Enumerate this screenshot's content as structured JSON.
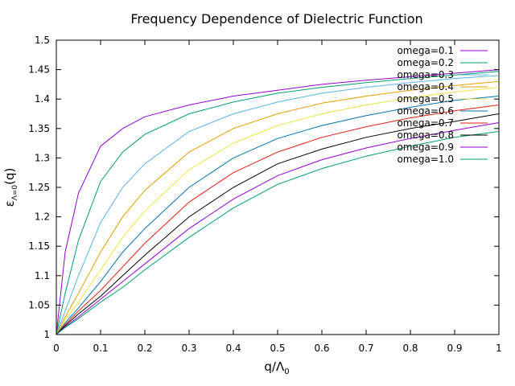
{
  "chart_data": {
    "type": "line",
    "title": "Frequency Dependence of Dielectric Function",
    "xlabel": "q/Λ",
    "xlabel_sub": "0",
    "ylabel": "ε",
    "ylabel_sub": "Λ=0",
    "ylabel_suffix": "(q)",
    "xlim": [
      0,
      1
    ],
    "ylim": [
      1,
      1.5
    ],
    "xticks": [
      "0",
      "0.1",
      "0.2",
      "0.3",
      "0.4",
      "0.5",
      "0.6",
      "0.7",
      "0.8",
      "0.9",
      "1"
    ],
    "yticks": [
      "1",
      "1.05",
      "1.1",
      "1.15",
      "1.2",
      "1.25",
      "1.3",
      "1.35",
      "1.4",
      "1.45",
      "1.5"
    ],
    "legend_position": "top-right",
    "grid": false,
    "x": [
      0,
      0.02,
      0.05,
      0.1,
      0.15,
      0.2,
      0.3,
      0.4,
      0.5,
      0.6,
      0.7,
      0.8,
      0.9,
      1.0
    ],
    "series": [
      {
        "name": "omega=0.1",
        "color": "#9400d3",
        "values": [
          1.0,
          1.14,
          1.24,
          1.32,
          1.35,
          1.37,
          1.39,
          1.405,
          1.415,
          1.425,
          1.432,
          1.438,
          1.444,
          1.45
        ]
      },
      {
        "name": "omega=0.2",
        "color": "#009e73",
        "values": [
          1.0,
          1.07,
          1.16,
          1.26,
          1.31,
          1.34,
          1.375,
          1.395,
          1.41,
          1.42,
          1.428,
          1.435,
          1.441,
          1.447
        ]
      },
      {
        "name": "omega=0.3",
        "color": "#56b4e9",
        "values": [
          1.0,
          1.04,
          1.1,
          1.19,
          1.25,
          1.29,
          1.345,
          1.375,
          1.395,
          1.41,
          1.42,
          1.428,
          1.435,
          1.44
        ]
      },
      {
        "name": "omega=0.4",
        "color": "#e69f00",
        "values": [
          1.0,
          1.03,
          1.07,
          1.14,
          1.2,
          1.245,
          1.31,
          1.35,
          1.375,
          1.393,
          1.405,
          1.415,
          1.423,
          1.43
        ]
      },
      {
        "name": "omega=0.5",
        "color": "#f0e442",
        "values": [
          1.0,
          1.025,
          1.055,
          1.11,
          1.165,
          1.21,
          1.28,
          1.325,
          1.355,
          1.375,
          1.39,
          1.402,
          1.412,
          1.42
        ]
      },
      {
        "name": "omega=0.6",
        "color": "#0072b2",
        "values": [
          1.0,
          1.02,
          1.045,
          1.09,
          1.14,
          1.18,
          1.25,
          1.3,
          1.333,
          1.355,
          1.372,
          1.386,
          1.398,
          1.405
        ]
      },
      {
        "name": "omega=0.7",
        "color": "#e51e10",
        "values": [
          1.0,
          1.017,
          1.04,
          1.075,
          1.115,
          1.155,
          1.225,
          1.275,
          1.31,
          1.335,
          1.353,
          1.368,
          1.38,
          1.39
        ]
      },
      {
        "name": "omega=0.8",
        "color": "#000000",
        "values": [
          1.0,
          1.015,
          1.035,
          1.065,
          1.1,
          1.135,
          1.2,
          1.25,
          1.29,
          1.315,
          1.335,
          1.35,
          1.362,
          1.375
        ]
      },
      {
        "name": "omega=0.9",
        "color": "#9400d3",
        "values": [
          1.0,
          1.013,
          1.03,
          1.06,
          1.09,
          1.12,
          1.18,
          1.23,
          1.27,
          1.297,
          1.317,
          1.333,
          1.347,
          1.36
        ]
      },
      {
        "name": "omega=1.0",
        "color": "#009e73",
        "values": [
          1.0,
          1.012,
          1.027,
          1.055,
          1.08,
          1.11,
          1.165,
          1.215,
          1.255,
          1.282,
          1.303,
          1.32,
          1.335,
          1.345
        ]
      }
    ]
  }
}
